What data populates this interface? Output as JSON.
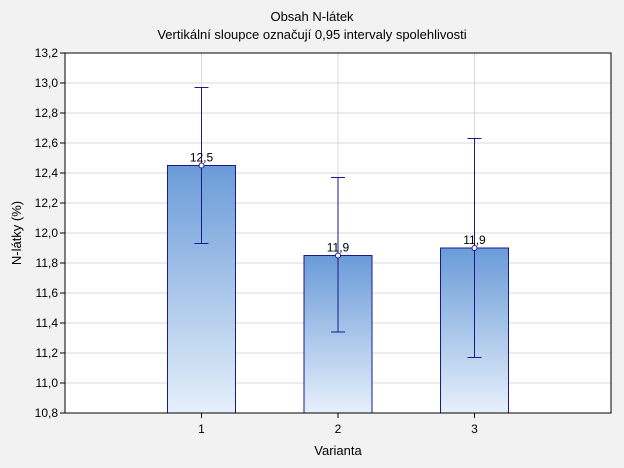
{
  "chart_data": {
    "type": "bar",
    "title": "Obsah N-látek",
    "subtitle": "Vertikální sloupce označují 0,95 intervaly spolehlivosti",
    "xlabel": "Varianta",
    "ylabel": "N-látky (%)",
    "categories": [
      "1",
      "2",
      "3"
    ],
    "values": [
      12.45,
      11.85,
      11.9
    ],
    "data_labels": [
      "12,5",
      "11,9",
      "11,9"
    ],
    "ci_low": [
      11.93,
      11.34,
      11.17
    ],
    "ci_high": [
      12.97,
      12.37,
      12.63
    ],
    "ylim": [
      10.8,
      13.2
    ],
    "yticks": [
      "10,8",
      "11,0",
      "11,2",
      "11,4",
      "11,6",
      "11,8",
      "12,0",
      "12,2",
      "12,4",
      "12,6",
      "12,8",
      "13,0",
      "13,2"
    ],
    "grid": true,
    "colors": {
      "bar_top": "#6a9bd8",
      "bar_bottom": "#e6f0fb",
      "bar_stroke": "#1a1a8c",
      "errorbar": "#1a1a8c",
      "grid": "#d8d8d8",
      "plot_bg": "#ffffff",
      "page_bg": "#f2f2f2"
    }
  }
}
